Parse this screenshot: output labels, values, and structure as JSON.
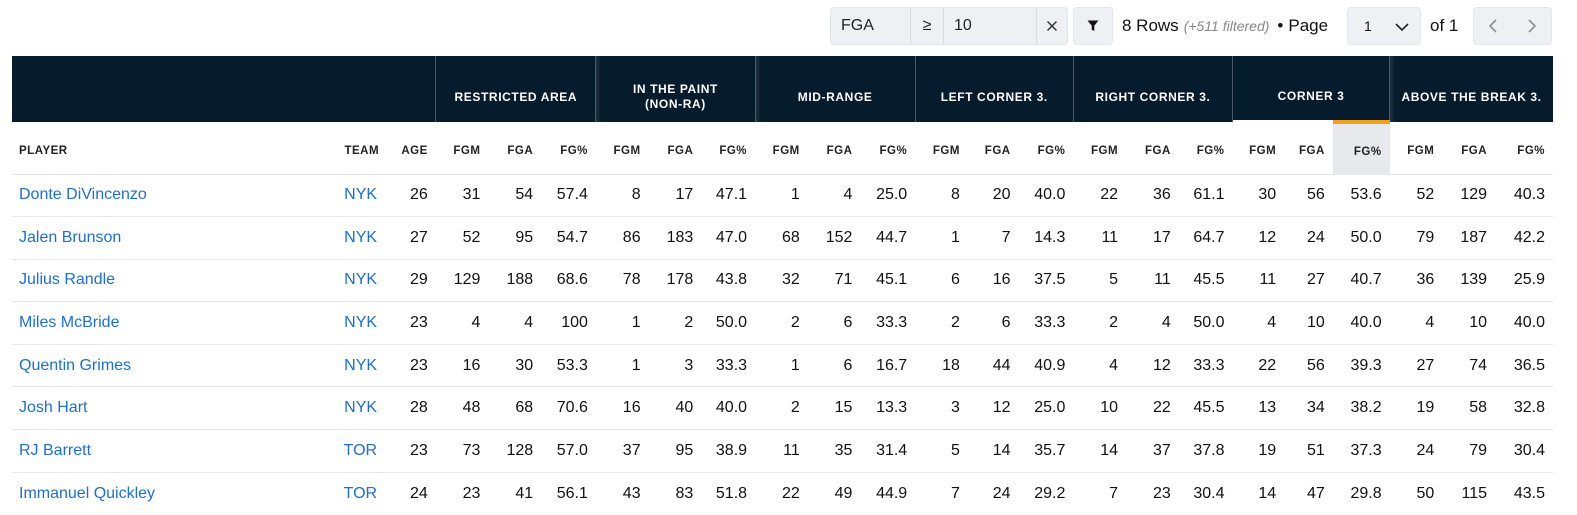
{
  "filter": {
    "stat": "FGA",
    "operator": "≥",
    "value": "10"
  },
  "summary": {
    "rows": "8 Rows",
    "filtered": "(+511 filtered)",
    "separator": "•",
    "page_label": "Page",
    "page_value": "1",
    "page_total": "of 1"
  },
  "table": {
    "groups": [
      "RESTRICTED AREA",
      "IN THE PAINT (NON-RA)",
      "MID-RANGE",
      "LEFT CORNER 3.",
      "RIGHT CORNER 3.",
      "CORNER 3",
      "ABOVE THE BREAK 3."
    ],
    "columns": [
      "PLAYER",
      "TEAM",
      "AGE",
      "FGM",
      "FGA",
      "FG%",
      "FGM",
      "FGA",
      "FG%",
      "FGM",
      "FGA",
      "FG%",
      "FGM",
      "FGA",
      "FG%",
      "FGM",
      "FGA",
      "FG%",
      "FGM",
      "FGA",
      "FG%",
      "FGM",
      "FGA",
      "FG%"
    ],
    "rows": [
      [
        "Donte DiVincenzo",
        "NYK",
        "26",
        "31",
        "54",
        "57.4",
        "8",
        "17",
        "47.1",
        "1",
        "4",
        "25.0",
        "8",
        "20",
        "40.0",
        "22",
        "36",
        "61.1",
        "30",
        "56",
        "53.6",
        "52",
        "129",
        "40.3"
      ],
      [
        "Jalen Brunson",
        "NYK",
        "27",
        "52",
        "95",
        "54.7",
        "86",
        "183",
        "47.0",
        "68",
        "152",
        "44.7",
        "1",
        "7",
        "14.3",
        "11",
        "17",
        "64.7",
        "12",
        "24",
        "50.0",
        "79",
        "187",
        "42.2"
      ],
      [
        "Julius Randle",
        "NYK",
        "29",
        "129",
        "188",
        "68.6",
        "78",
        "178",
        "43.8",
        "32",
        "71",
        "45.1",
        "6",
        "16",
        "37.5",
        "5",
        "11",
        "45.5",
        "11",
        "27",
        "40.7",
        "36",
        "139",
        "25.9"
      ],
      [
        "Miles McBride",
        "NYK",
        "23",
        "4",
        "4",
        "100",
        "1",
        "2",
        "50.0",
        "2",
        "6",
        "33.3",
        "2",
        "6",
        "33.3",
        "2",
        "4",
        "50.0",
        "4",
        "10",
        "40.0",
        "4",
        "10",
        "40.0"
      ],
      [
        "Quentin Grimes",
        "NYK",
        "23",
        "16",
        "30",
        "53.3",
        "1",
        "3",
        "33.3",
        "1",
        "6",
        "16.7",
        "18",
        "44",
        "40.9",
        "4",
        "12",
        "33.3",
        "22",
        "56",
        "39.3",
        "27",
        "74",
        "36.5"
      ],
      [
        "Josh Hart",
        "NYK",
        "28",
        "48",
        "68",
        "70.6",
        "16",
        "40",
        "40.0",
        "2",
        "15",
        "13.3",
        "3",
        "12",
        "25.0",
        "10",
        "22",
        "45.5",
        "13",
        "34",
        "38.2",
        "19",
        "58",
        "32.8"
      ],
      [
        "RJ Barrett",
        "TOR",
        "23",
        "73",
        "128",
        "57.0",
        "37",
        "95",
        "38.9",
        "11",
        "35",
        "31.4",
        "5",
        "14",
        "35.7",
        "14",
        "37",
        "37.8",
        "19",
        "51",
        "37.3",
        "24",
        "79",
        "30.4"
      ],
      [
        "Immanuel Quickley",
        "TOR",
        "24",
        "23",
        "41",
        "56.1",
        "43",
        "83",
        "51.8",
        "22",
        "49",
        "44.9",
        "7",
        "24",
        "29.2",
        "7",
        "23",
        "30.4",
        "14",
        "47",
        "29.8",
        "50",
        "115",
        "43.5"
      ]
    ]
  },
  "colors": {
    "header_bg": "#061b2c",
    "link": "#1f6fc7",
    "sort_indicator": "#f0a318",
    "control_bg": "#eef0f3"
  },
  "icons": {
    "clear": "close-icon",
    "filter": "funnel-icon",
    "page_dropdown": "chevron-down-icon",
    "prev": "chevron-left-icon",
    "next": "chevron-right-icon"
  }
}
